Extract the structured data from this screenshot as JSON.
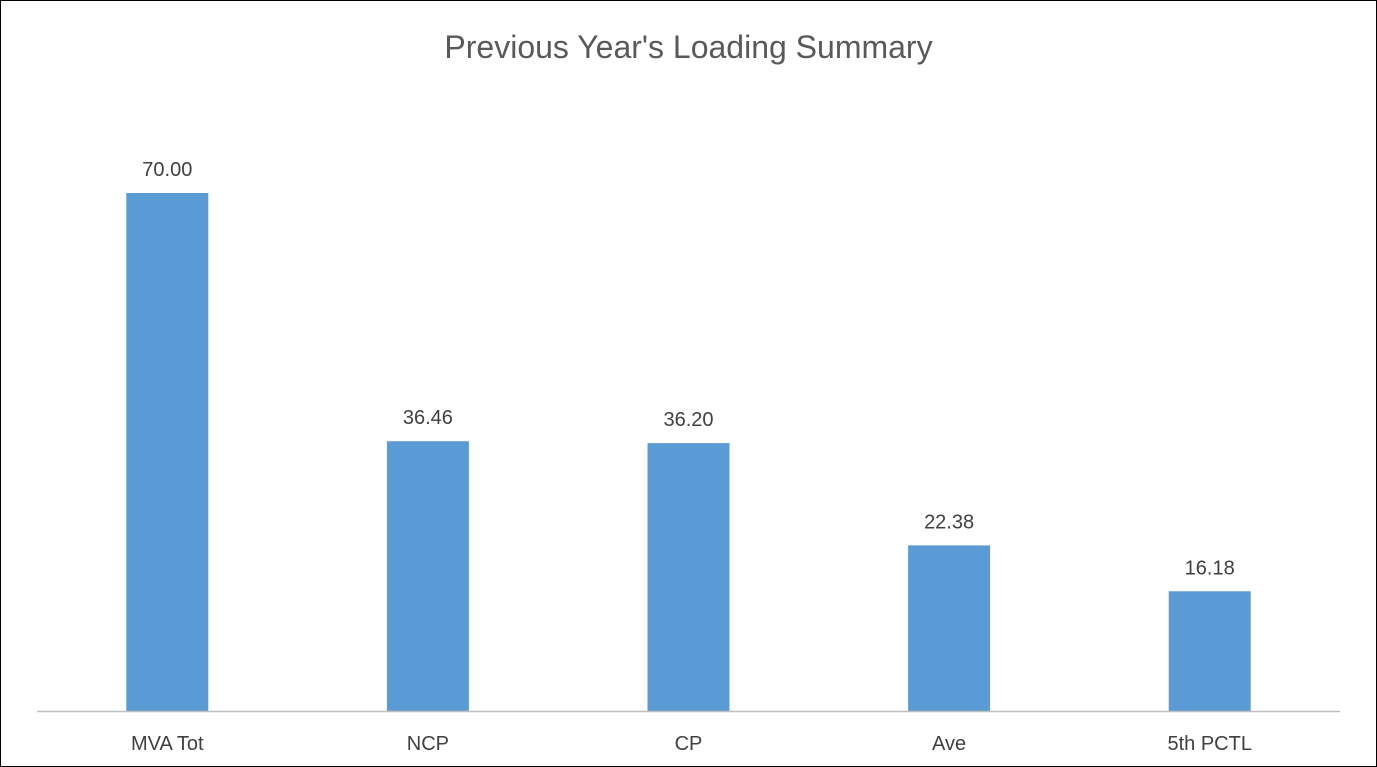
{
  "chart_data": {
    "type": "bar",
    "title": "Previous Year's Loading Summary",
    "categories": [
      "MVA Tot",
      "NCP",
      "CP",
      "Ave",
      "5th PCTL"
    ],
    "values": [
      70.0,
      36.46,
      36.2,
      22.38,
      16.18
    ],
    "data_labels": [
      "70.00",
      "36.46",
      "36.20",
      "22.38",
      "16.18"
    ],
    "xlabel": "",
    "ylabel": "",
    "ylim": [
      0,
      80
    ],
    "grid": false,
    "legend": "none",
    "bar_color": "#5B9BD5",
    "axis_color": "#BFBFBF"
  }
}
